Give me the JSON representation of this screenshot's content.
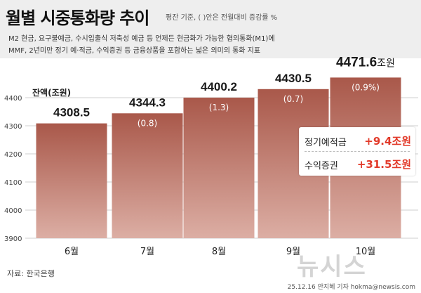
{
  "header": {
    "title": "월별 시중통화량 추이",
    "note": "평잔 기준, ( )안은 전월대비 증감률 %",
    "desc_line1": "M2 현금, 요구불예금, 수시입출식 저축성 예금 등 언제든 현금화가 가능한 협의통화(M1)에",
    "desc_line2": "MMF, 2년미만 정기 예·적금, 수익증권 등 금융상품을 포함하는 넓은 의미의 통화 지표"
  },
  "unit_label": "잔액(조원)",
  "legend": {
    "row1_name": "정기예적금",
    "row1_value": "+9.4조원",
    "row2_name": "수익증권",
    "row2_value": "+31.5조원"
  },
  "footer": {
    "source": "자료: 한국은행",
    "credit": "25.12.16 안지혜 기자 hokma@newsis.com",
    "watermark": "뉴시스"
  },
  "colors": {
    "bar_top": "#a9584a",
    "bar_bottom": "#dcaea4",
    "highlight": "#e23a2a"
  },
  "chart_data": {
    "type": "bar",
    "categories": [
      "6월",
      "7월",
      "8월",
      "9월",
      "10월"
    ],
    "values": [
      4308.5,
      4344.3,
      4400.2,
      4430.5,
      4471.6
    ],
    "value_labels": [
      "4308.5",
      "4344.3",
      "4400.2",
      "4430.5",
      "4471.6"
    ],
    "last_value_suffix": "조원",
    "change_labels": [
      "",
      "(0.8)",
      "(1.3)",
      "(0.7)",
      "(0.9%)"
    ],
    "ylabel": "잔액(조원)",
    "ylim": [
      3900,
      4500
    ],
    "yticks": [
      3900,
      4000,
      4100,
      4200,
      4300,
      4400
    ],
    "grid": true
  }
}
